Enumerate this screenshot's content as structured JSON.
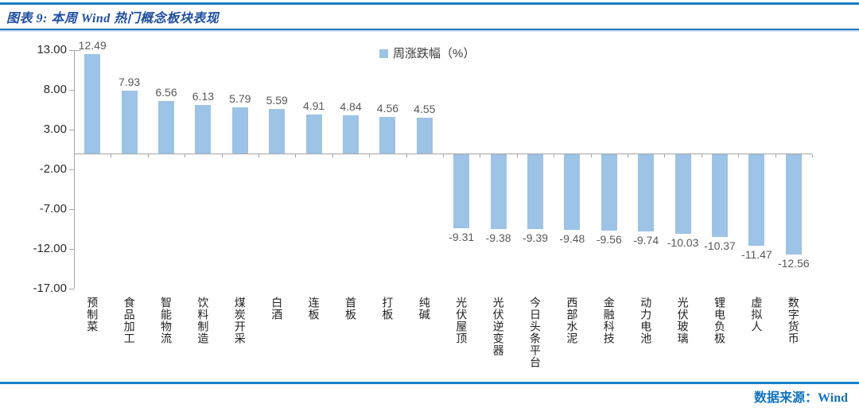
{
  "header": {
    "title": "图表 9: 本周 Wind 热门概念板块表现"
  },
  "footer": {
    "source": "数据来源：Wind"
  },
  "chart_data": {
    "type": "bar",
    "title": "本周Wind热门概念板块表现",
    "legend": "周涨跌幅（%）",
    "legend_position": "top-center",
    "grid": false,
    "ylim": [
      -17,
      13
    ],
    "yticks": [
      13,
      8,
      3,
      -2,
      -7,
      -12,
      -17
    ],
    "categories": [
      "预制菜",
      "食品加工",
      "智能物流",
      "饮料制造",
      "煤炭开采",
      "白酒",
      "连板",
      "首板",
      "打板",
      "纯碱",
      "光伏屋顶",
      "光伏逆变器",
      "今日头条平台",
      "西部水泥",
      "金融科技",
      "动力电池",
      "光伏玻璃",
      "锂电负极",
      "虚拟人",
      "数字货币"
    ],
    "values": [
      12.49,
      7.93,
      6.56,
      6.13,
      5.79,
      5.59,
      4.91,
      4.84,
      4.56,
      4.55,
      -9.31,
      -9.38,
      -9.39,
      -9.48,
      -9.56,
      -9.74,
      -10.03,
      -10.37,
      -11.47,
      -12.56
    ],
    "bar_color": "#9dc3e6",
    "colors": {
      "title_blue": "#1f4e9f",
      "rule_blue": "#1b7ac2",
      "footer_rule_blue": "#1780cc",
      "axis_gray": "#a6a6a6",
      "value_label_gray": "#595959",
      "source_blue": "#1473be"
    }
  }
}
